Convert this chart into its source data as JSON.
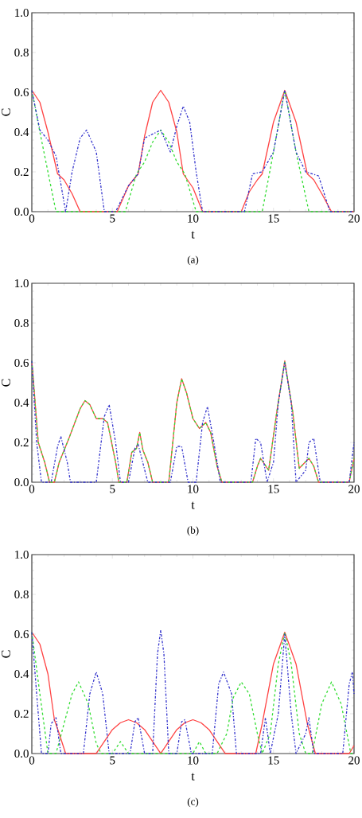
{
  "chart_data": [
    {
      "type": "line",
      "xlabel": "t",
      "ylabel": "C",
      "xlim": [
        0,
        20
      ],
      "ylim": [
        0,
        1
      ],
      "xticks": [
        0,
        5,
        10,
        15,
        20
      ],
      "yticks": [
        {
          "value": 0,
          "label": "0.0"
        },
        {
          "value": 0.2,
          "label": "0.2"
        },
        {
          "value": 0.4,
          "label": "0.4"
        },
        {
          "value": 0.6,
          "label": "0.6"
        },
        {
          "value": 0.8,
          "label": "0.8"
        },
        {
          "value": 1,
          "label": "1.0"
        }
      ],
      "annotations": [
        "(a)"
      ],
      "series": [
        {
          "color": "#ff4444",
          "line_style": "solid",
          "x": [
            0,
            0.5,
            1,
            1.6,
            2,
            2.5,
            3,
            5.3,
            6,
            6.6,
            7,
            7.5,
            8,
            8.5,
            9,
            9.4,
            10,
            10.6,
            13,
            13.5,
            14,
            14.3,
            15,
            15.7,
            16.4,
            17.1,
            17.5,
            18,
            18.6,
            20
          ],
          "values": [
            0.61,
            0.55,
            0.4,
            0.19,
            0.16,
            0.09,
            0,
            0,
            0.13,
            0.19,
            0.38,
            0.55,
            0.61,
            0.55,
            0.4,
            0.19,
            0.12,
            0,
            0,
            0.1,
            0.16,
            0.19,
            0.45,
            0.61,
            0.45,
            0.19,
            0.16,
            0.09,
            0,
            0
          ]
        },
        {
          "color": "#33dd33",
          "line_style": "dashed",
          "x": [
            0,
            0.5,
            1,
            1.5,
            5.8,
            6.5,
            7,
            7.5,
            8,
            8.5,
            9,
            9.5,
            10.2,
            14.3,
            15,
            15.7,
            16.4,
            17.2,
            20
          ],
          "values": [
            0.61,
            0.4,
            0.2,
            0,
            0,
            0.19,
            0.25,
            0.35,
            0.41,
            0.35,
            0.25,
            0.19,
            0,
            0,
            0.3,
            0.61,
            0.3,
            0,
            0
          ]
        },
        {
          "color": "#3333cc",
          "line_style": "dashdot",
          "x": [
            0,
            0.5,
            1,
            1.5,
            2.1,
            2.5,
            3,
            3.4,
            4,
            4.5,
            5.2,
            6,
            6.6,
            7,
            8,
            8.6,
            9,
            9.4,
            9.8,
            10.2,
            10.6,
            13.2,
            13.7,
            14.3,
            15,
            15.7,
            16.4,
            17,
            17.8,
            18.5,
            20
          ],
          "values": [
            0.61,
            0.41,
            0.36,
            0.28,
            0,
            0.2,
            0.37,
            0.41,
            0.3,
            0,
            0,
            0.13,
            0.19,
            0.37,
            0.41,
            0.3,
            0.43,
            0.53,
            0.45,
            0.2,
            0,
            0,
            0.19,
            0.2,
            0.3,
            0.61,
            0.3,
            0.2,
            0.18,
            0,
            0
          ]
        }
      ]
    },
    {
      "type": "line",
      "xlabel": "t",
      "ylabel": "C",
      "xlim": [
        0,
        20
      ],
      "ylim": [
        0,
        1
      ],
      "xticks": [
        0,
        5,
        10,
        15,
        20
      ],
      "yticks": [
        {
          "value": 0,
          "label": "0.0"
        },
        {
          "value": 0.2,
          "label": "0.2"
        },
        {
          "value": 0.4,
          "label": "0.4"
        },
        {
          "value": 0.6,
          "label": "0.6"
        },
        {
          "value": 0.8,
          "label": "0.8"
        },
        {
          "value": 1,
          "label": "1.0"
        }
      ],
      "annotations": [
        "(b)"
      ],
      "series": [
        {
          "color": "#ff4444",
          "line_style": "solid",
          "x": [
            0,
            0.4,
            0.8,
            1.1,
            1.4,
            1.7,
            2.3,
            3,
            3.3,
            3.6,
            4,
            4.4,
            4.7,
            5.2,
            5.4,
            5.9,
            6.2,
            6.5,
            6.7,
            6.9,
            7.2,
            7.5,
            8.5,
            9,
            9.3,
            9.6,
            10,
            10.4,
            10.8,
            11.1,
            11.5,
            11.8,
            13.7,
            14,
            14.2,
            14.7,
            15.2,
            15.7,
            16.2,
            16.6,
            17.2,
            17.5,
            17.8,
            19.7,
            20
          ],
          "values": [
            0.61,
            0.2,
            0.1,
            0,
            0,
            0.1,
            0.22,
            0.37,
            0.41,
            0.39,
            0.32,
            0.32,
            0.3,
            0.1,
            0,
            0,
            0.15,
            0.17,
            0.25,
            0.16,
            0.1,
            0,
            0,
            0.4,
            0.52,
            0.45,
            0.32,
            0.27,
            0.3,
            0.25,
            0.08,
            0,
            0,
            0.08,
            0.12,
            0.06,
            0.35,
            0.61,
            0.35,
            0.07,
            0.12,
            0.08,
            0,
            0,
            0.12
          ]
        },
        {
          "color": "#33dd33",
          "line_style": "dashed",
          "x": [
            0,
            0.4,
            0.8,
            1.1,
            1.4,
            1.7,
            2.3,
            3,
            3.3,
            3.6,
            4,
            4.4,
            4.7,
            5.2,
            5.4,
            5.9,
            6.2,
            6.5,
            6.7,
            6.9,
            7.2,
            7.5,
            8.5,
            9,
            9.3,
            9.6,
            10,
            10.4,
            10.8,
            11.1,
            11.5,
            11.8,
            13.7,
            14,
            14.2,
            14.7,
            15.2,
            15.7,
            16.2,
            16.6,
            17.2,
            17.5,
            17.8,
            19.7,
            20
          ],
          "values": [
            0.61,
            0.2,
            0.1,
            0,
            0,
            0.1,
            0.22,
            0.37,
            0.41,
            0.39,
            0.32,
            0.32,
            0.3,
            0.1,
            0,
            0,
            0.15,
            0.17,
            0.25,
            0.16,
            0.1,
            0,
            0,
            0.4,
            0.52,
            0.45,
            0.32,
            0.27,
            0.3,
            0.25,
            0.08,
            0,
            0,
            0.08,
            0.12,
            0.06,
            0.35,
            0.61,
            0.35,
            0.07,
            0.12,
            0.08,
            0,
            0,
            0.12
          ]
        },
        {
          "color": "#3333cc",
          "line_style": "dashdot",
          "x": [
            0,
            0.3,
            0.6,
            1.2,
            1.6,
            1.8,
            2.2,
            2.4,
            4,
            4.5,
            4.8,
            5.2,
            5.5,
            6,
            6.4,
            6.6,
            7.2,
            8.6,
            9,
            9.3,
            9.7,
            10.2,
            10.6,
            10.9,
            11.3,
            11.7,
            13.6,
            13.9,
            14.2,
            14.6,
            15,
            15.3,
            15.7,
            16.1,
            16.4,
            17,
            17.2,
            17.5,
            17.9,
            19.7,
            20
          ],
          "values": [
            0.61,
            0.2,
            0,
            0,
            0.18,
            0.23,
            0.1,
            0,
            0,
            0.33,
            0.39,
            0.2,
            0,
            0,
            0.17,
            0.19,
            0,
            0,
            0.18,
            0.18,
            0,
            0,
            0.3,
            0.38,
            0.2,
            0,
            0,
            0.22,
            0.2,
            0,
            0.1,
            0.4,
            0.6,
            0.4,
            0,
            0.06,
            0.2,
            0.22,
            0,
            0,
            0.2
          ]
        }
      ]
    },
    {
      "type": "line",
      "xlabel": "t",
      "ylabel": "C",
      "xlim": [
        0,
        20
      ],
      "ylim": [
        0,
        1
      ],
      "xticks": [
        0,
        5,
        10,
        15,
        20
      ],
      "yticks": [
        {
          "value": 0,
          "label": "0.0"
        },
        {
          "value": 0.2,
          "label": "0.2"
        },
        {
          "value": 0.4,
          "label": "0.4"
        },
        {
          "value": 0.6,
          "label": "0.6"
        },
        {
          "value": 0.8,
          "label": "0.8"
        },
        {
          "value": 1,
          "label": "1.0"
        }
      ],
      "annotations": [
        "(c)"
      ],
      "series": [
        {
          "color": "#ff4444",
          "line_style": "solid",
          "x": [
            0,
            0.5,
            1,
            1.4,
            1.7,
            2.1,
            4,
            4.5,
            5,
            5.5,
            6,
            6.5,
            7,
            7.5,
            8,
            8.5,
            9,
            9.5,
            10,
            10.5,
            11,
            11.5,
            12,
            13.9,
            14.3,
            15,
            15.7,
            16.4,
            17.1,
            17.6,
            19.7,
            20
          ],
          "values": [
            0.61,
            0.55,
            0.4,
            0.17,
            0.1,
            0,
            0,
            0.06,
            0.12,
            0.155,
            0.17,
            0.155,
            0.12,
            0.06,
            0,
            0.06,
            0.12,
            0.155,
            0.17,
            0.155,
            0.12,
            0.06,
            0,
            0,
            0.15,
            0.45,
            0.61,
            0.45,
            0.15,
            0,
            0,
            0.04
          ]
        },
        {
          "color": "#33dd33",
          "line_style": "dashed",
          "x": [
            0,
            0.5,
            1,
            1.5,
            2,
            2.5,
            2.9,
            3.5,
            4,
            4.3,
            5,
            5.5,
            6,
            10,
            10.4,
            10.8,
            11.5,
            12.1,
            12.5,
            13,
            13.5,
            14,
            14.3,
            14.8,
            15.3,
            15.7,
            16.1,
            16.6,
            17,
            17.4,
            18,
            18.6,
            19.2,
            19.8,
            20
          ],
          "values": [
            0.61,
            0.3,
            0,
            0,
            0.15,
            0.3,
            0.36,
            0.25,
            0.05,
            0,
            0,
            0.06,
            0,
            0,
            0.06,
            0,
            0,
            0.1,
            0.28,
            0.36,
            0.3,
            0.1,
            0,
            0.1,
            0.45,
            0.61,
            0.45,
            0.1,
            0,
            0,
            0.25,
            0.36,
            0.25,
            0,
            0
          ]
        },
        {
          "color": "#3333cc",
          "line_style": "dashdot",
          "x": [
            0,
            0.3,
            0.6,
            1,
            1.2,
            1.5,
            1.8,
            3.2,
            3.6,
            4,
            4.4,
            4.8,
            6.1,
            6.4,
            6.6,
            7,
            7.5,
            7.8,
            8,
            8.2,
            8.5,
            9,
            9.3,
            9.5,
            9.9,
            11.2,
            11.6,
            11.9,
            12.4,
            12.7,
            14.2,
            14.5,
            14.8,
            15.3,
            15.7,
            16.1,
            16.4,
            17,
            17.2,
            17.5,
            19.3,
            19.7,
            19.9,
            20
          ],
          "values": [
            0.61,
            0.3,
            0,
            0,
            0.15,
            0.18,
            0,
            0,
            0.3,
            0.41,
            0.3,
            0,
            0,
            0.16,
            0.18,
            0,
            0,
            0.5,
            0.62,
            0.5,
            0,
            0,
            0.16,
            0.17,
            0,
            0,
            0.35,
            0.41,
            0.3,
            0,
            0,
            0.18,
            0,
            0.2,
            0.6,
            0.2,
            0,
            0.1,
            0.18,
            0,
            0,
            0.35,
            0.41,
            0.3
          ]
        }
      ]
    }
  ]
}
